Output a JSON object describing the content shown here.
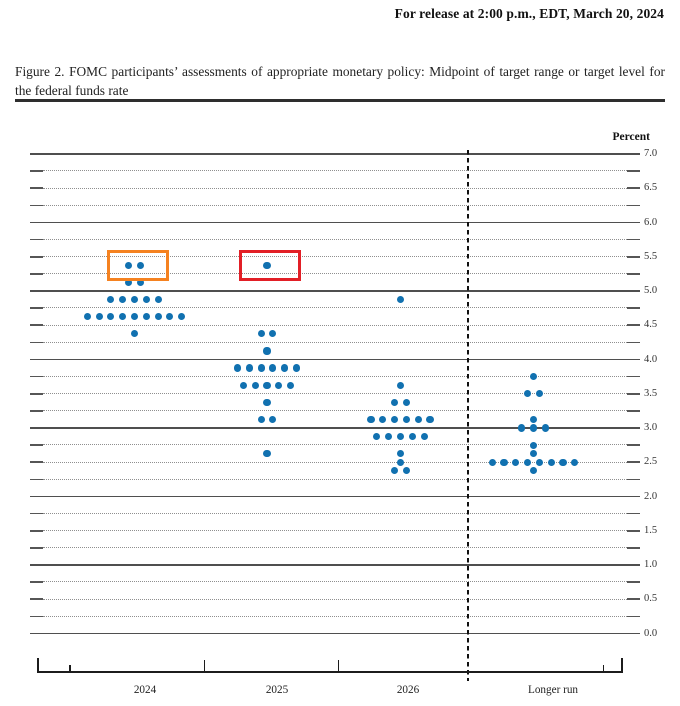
{
  "header": {
    "release_line": "For release at 2:00 p.m., EDT, March 20, 2024"
  },
  "caption": "Figure 2.  FOMC participants’ assessments of appropriate monetary policy:  Midpoint of target range or target level for the federal funds rate",
  "chart_data": {
    "type": "scatter",
    "title": "FOMC participants’ assessments of appropriate monetary policy: Midpoint of target range or target level for the federal funds rate",
    "ylabel": "Percent",
    "xlabel": "",
    "ylim": [
      0.0,
      7.0
    ],
    "y_tick_step": 0.5,
    "gridline_step": 0.25,
    "grid_style": "solid lines at whole percents, dotted lines at quarter percents",
    "y_tick_labels": [
      "7.0",
      "6.5",
      "6.0",
      "5.5",
      "5.0",
      "4.5",
      "4.0",
      "3.5",
      "3.0",
      "2.5",
      "2.0",
      "1.5",
      "1.0",
      "0.5",
      "0.0"
    ],
    "categories": [
      "2024",
      "2025",
      "2026",
      "Longer run"
    ],
    "dot_color": "#1171B0",
    "series": [
      {
        "category": "2024",
        "dots": [
          {
            "rate": 5.375,
            "count": 2
          },
          {
            "rate": 5.125,
            "count": 2
          },
          {
            "rate": 4.875,
            "count": 5
          },
          {
            "rate": 4.625,
            "count": 9
          },
          {
            "rate": 4.375,
            "count": 1
          }
        ]
      },
      {
        "category": "2025",
        "dots": [
          {
            "rate": 5.375,
            "count": 1
          },
          {
            "rate": 4.375,
            "count": 2
          },
          {
            "rate": 4.125,
            "count": 1
          },
          {
            "rate": 3.875,
            "count": 6
          },
          {
            "rate": 3.625,
            "count": 5
          },
          {
            "rate": 3.375,
            "count": 1
          },
          {
            "rate": 3.125,
            "count": 2
          },
          {
            "rate": 2.625,
            "count": 1
          }
        ]
      },
      {
        "category": "2026",
        "dots": [
          {
            "rate": 4.875,
            "count": 1
          },
          {
            "rate": 3.625,
            "count": 1
          },
          {
            "rate": 3.375,
            "count": 2
          },
          {
            "rate": 3.125,
            "count": 6
          },
          {
            "rate": 2.875,
            "count": 5
          },
          {
            "rate": 2.625,
            "count": 1
          },
          {
            "rate": 2.5,
            "count": 1
          },
          {
            "rate": 2.375,
            "count": 2
          }
        ]
      },
      {
        "category": "Longer run",
        "dots": [
          {
            "rate": 3.75,
            "count": 1
          },
          {
            "rate": 3.5,
            "count": 2
          },
          {
            "rate": 3.125,
            "count": 1
          },
          {
            "rate": 3.0,
            "count": 3
          },
          {
            "rate": 2.75,
            "count": 1
          },
          {
            "rate": 2.625,
            "count": 1
          },
          {
            "rate": 2.5,
            "count": 8
          },
          {
            "rate": 2.375,
            "count": 1
          }
        ]
      }
    ],
    "annotations": [
      {
        "name": "orange-highlight-box",
        "shape": "rectangle",
        "category": "2024",
        "rate": 5.375,
        "color": "#F58220"
      },
      {
        "name": "red-highlight-box",
        "shape": "rectangle",
        "category": "2025",
        "rate": 5.375,
        "color": "#E21F26"
      }
    ],
    "separator": {
      "style": "vertical dashed line",
      "between": [
        "2026",
        "Longer run"
      ]
    }
  }
}
